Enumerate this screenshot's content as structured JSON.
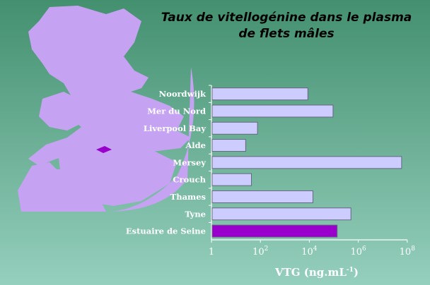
{
  "chart_data": {
    "type": "bar",
    "orientation": "horizontal",
    "title": "Taux de vitellogénine dans le plasma de flets mâles",
    "title_lines": [
      "Taux de vitellogénine dans le plasma",
      "de flets mâles"
    ],
    "categories": [
      "Noordwijk",
      "Mer du Nord",
      "Liverpool Bay",
      "Alde",
      "Mersey",
      "Crouch",
      "Thames",
      "Tyne",
      "Estuaire de Seine"
    ],
    "values": [
      8700,
      93000,
      76,
      25,
      59000000,
      43,
      14000,
      500000,
      137000
    ],
    "xlabel": "VTG (ng.mL-1)",
    "xlabel_main": "VTG (ng.mL",
    "xlabel_sup": "-1",
    "xlabel_end": ")",
    "xscale": "log",
    "xlim": [
      1,
      100000000
    ],
    "xticks": [
      {
        "value": 1,
        "base": "1",
        "exp": ""
      },
      {
        "value": 100,
        "base": "10",
        "exp": "2"
      },
      {
        "value": 10000,
        "base": "10",
        "exp": "4"
      },
      {
        "value": 1000000,
        "base": "10",
        "exp": "6"
      },
      {
        "value": 100000000,
        "base": "10",
        "exp": "8"
      }
    ],
    "grid": false,
    "colors": {
      "bar": "#ccccff",
      "highlight": "#9900cc",
      "highlight_category": "Estuaire de Seine",
      "map": "#c6a3f2",
      "background_top": "#43906f",
      "background_bottom": "#95cfbd"
    }
  }
}
